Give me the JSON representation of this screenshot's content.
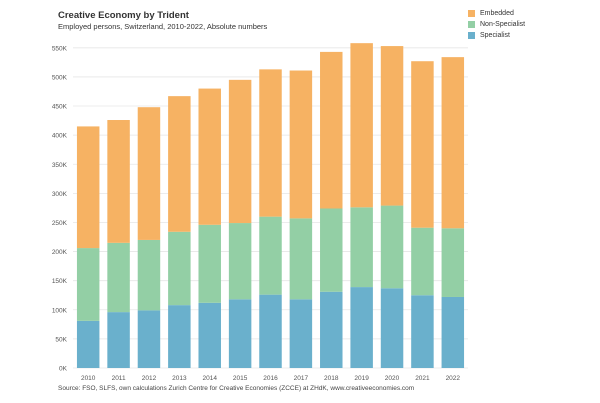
{
  "header": {
    "title": "Creative Economy by Trident",
    "subtitle": "Employed persons, Switzerland, 2010-2022, Absolute numbers"
  },
  "footer": {
    "source": "Source: FSO, SLFS, own calculations Zurich Centre for Creative Economies (ZCCE) at ZHdK, www.creativeeconomies.com"
  },
  "chart_data": {
    "type": "bar",
    "stacked": true,
    "title": "Creative Economy by Trident",
    "subtitle": "Employed persons, Switzerland, 2010-2022, Absolute numbers",
    "xlabel": "",
    "ylabel": "",
    "categories": [
      "2010",
      "2011",
      "2012",
      "2013",
      "2014",
      "2015",
      "2016",
      "2017",
      "2018",
      "2019",
      "2020",
      "2021",
      "2022"
    ],
    "ylim": [
      0,
      560000
    ],
    "yticks": [
      0,
      50000,
      100000,
      150000,
      200000,
      250000,
      300000,
      350000,
      400000,
      450000,
      500000,
      550000
    ],
    "ytick_labels": [
      "0K",
      "50K",
      "100K",
      "150K",
      "200K",
      "250K",
      "300K",
      "350K",
      "400K",
      "450K",
      "500K",
      "550K"
    ],
    "grid": true,
    "legend_position": "top-right",
    "series": [
      {
        "name": "Specialist",
        "color": "#6ab0cc",
        "values": [
          81000,
          96000,
          99000,
          108000,
          112000,
          118000,
          126000,
          118000,
          131000,
          139000,
          137000,
          125000,
          122000
        ]
      },
      {
        "name": "Non-Specialist",
        "color": "#93cfa5",
        "values": [
          125000,
          119000,
          121000,
          126000,
          134000,
          131000,
          134000,
          139000,
          143000,
          137000,
          142000,
          116000,
          118000
        ]
      },
      {
        "name": "Embedded",
        "color": "#f6b263",
        "values": [
          209000,
          211000,
          228000,
          233000,
          234000,
          246000,
          253000,
          254000,
          269000,
          282000,
          274000,
          286000,
          294000
        ]
      }
    ],
    "legend": [
      "Embedded",
      "Non-Specialist",
      "Specialist"
    ]
  }
}
